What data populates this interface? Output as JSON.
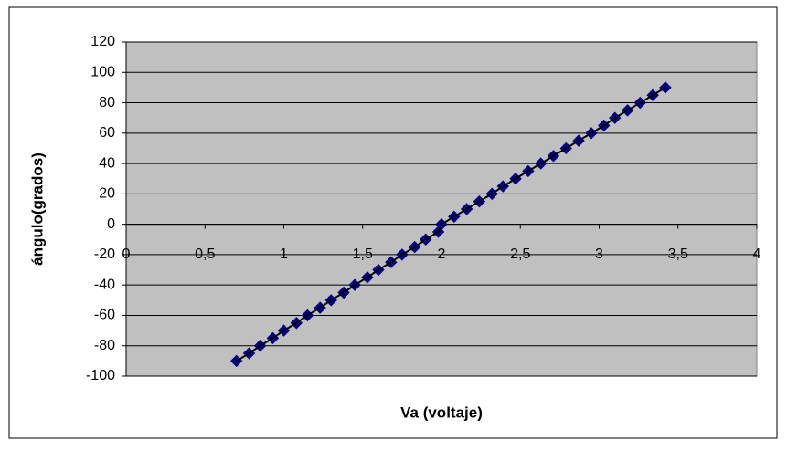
{
  "chart_data": {
    "type": "scatter",
    "x_label": "Va (voltaje)",
    "y_label": "ángulo(grados)",
    "x": [
      0.7,
      0.78,
      0.85,
      0.93,
      1.0,
      1.08,
      1.15,
      1.23,
      1.3,
      1.38,
      1.45,
      1.53,
      1.6,
      1.68,
      1.75,
      1.83,
      1.9,
      1.98,
      2.0,
      2.08,
      2.16,
      2.24,
      2.32,
      2.39,
      2.47,
      2.55,
      2.63,
      2.71,
      2.79,
      2.87,
      2.95,
      3.03,
      3.1,
      3.18,
      3.26,
      3.34,
      3.42
    ],
    "series": [
      {
        "color": "#000080",
        "line_color": "#000000",
        "values": [
          -90,
          -85,
          -80,
          -75,
          -70,
          -65,
          -60,
          -55,
          -50,
          -45,
          -40,
          -35,
          -30,
          -25,
          -20,
          -15,
          -10,
          -5,
          0,
          5,
          10,
          15,
          20,
          25,
          30,
          35,
          40,
          45,
          50,
          55,
          60,
          65,
          70,
          75,
          80,
          85,
          90
        ]
      }
    ],
    "xlim": [
      0,
      4
    ],
    "xticks": [
      0,
      {
        "value": 0.5,
        "label": "0,5"
      },
      1,
      {
        "value": 1.5,
        "label": "1,5"
      },
      2,
      {
        "value": 2.5,
        "label": "2,5"
      },
      3,
      {
        "value": 3.5,
        "label": "3,5"
      },
      4
    ],
    "ylim": [
      -100,
      120
    ],
    "yticks": [
      -100,
      -80,
      -60,
      -40,
      -20,
      0,
      20,
      40,
      60,
      80,
      100,
      120
    ],
    "grid": true,
    "background": "#c0c0c0"
  }
}
